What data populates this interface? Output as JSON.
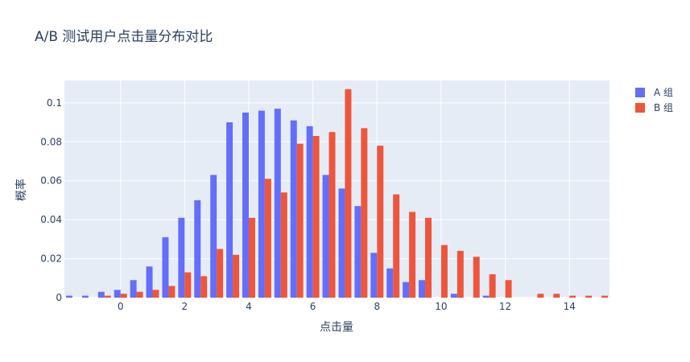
{
  "chart_data": {
    "type": "bar",
    "title": "A/B 测试用户点击量分布对比",
    "xlabel": "点击量",
    "ylabel": "概率",
    "xlim": [
      -1.5,
      15
    ],
    "ylim": [
      0,
      0.1115
    ],
    "x_ticks": [
      0,
      2,
      4,
      6,
      8,
      10,
      12,
      14
    ],
    "y_ticks": [
      0,
      0.02,
      0.04,
      0.06,
      0.08,
      0.1
    ],
    "y_tick_labels": [
      "0",
      "0.02",
      "0.04",
      "0.06",
      "0.08",
      "0.1"
    ],
    "grid": true,
    "legend_position": "top-right",
    "series": [
      {
        "name": "A 组",
        "color": "#636efa",
        "x": [
          -1.5,
          -1,
          -0.5,
          0,
          0.5,
          1,
          1.5,
          2,
          2.5,
          3,
          3.5,
          4,
          4.5,
          5,
          5.5,
          6,
          6.5,
          7,
          7.5,
          8,
          8.5,
          9,
          9.5,
          10.5,
          11.5
        ],
        "values": [
          0.001,
          0.001,
          0.003,
          0.004,
          0.009,
          0.016,
          0.031,
          0.041,
          0.05,
          0.063,
          0.09,
          0.095,
          0.096,
          0.097,
          0.091,
          0.088,
          0.063,
          0.056,
          0.047,
          0.023,
          0.015,
          0.008,
          0.009,
          0.002,
          0.001
        ]
      },
      {
        "name": "B 组",
        "color": "#ef553b",
        "x": [
          -0.5,
          0,
          0.5,
          1,
          1.5,
          2,
          2.5,
          3,
          3.5,
          4,
          4.5,
          5,
          5.5,
          6,
          6.5,
          7,
          7.5,
          8,
          8.5,
          9,
          9.5,
          10,
          10.5,
          11,
          11.5,
          12,
          13,
          13.5,
          14,
          14.5,
          15
        ],
        "values": [
          0.001,
          0.002,
          0.003,
          0.004,
          0.006,
          0.013,
          0.011,
          0.025,
          0.022,
          0.041,
          0.061,
          0.054,
          0.079,
          0.083,
          0.085,
          0.107,
          0.087,
          0.078,
          0.053,
          0.044,
          0.041,
          0.027,
          0.024,
          0.021,
          0.012,
          0.009,
          0.002,
          0.002,
          0.001,
          0.001,
          0.001
        ]
      }
    ]
  }
}
